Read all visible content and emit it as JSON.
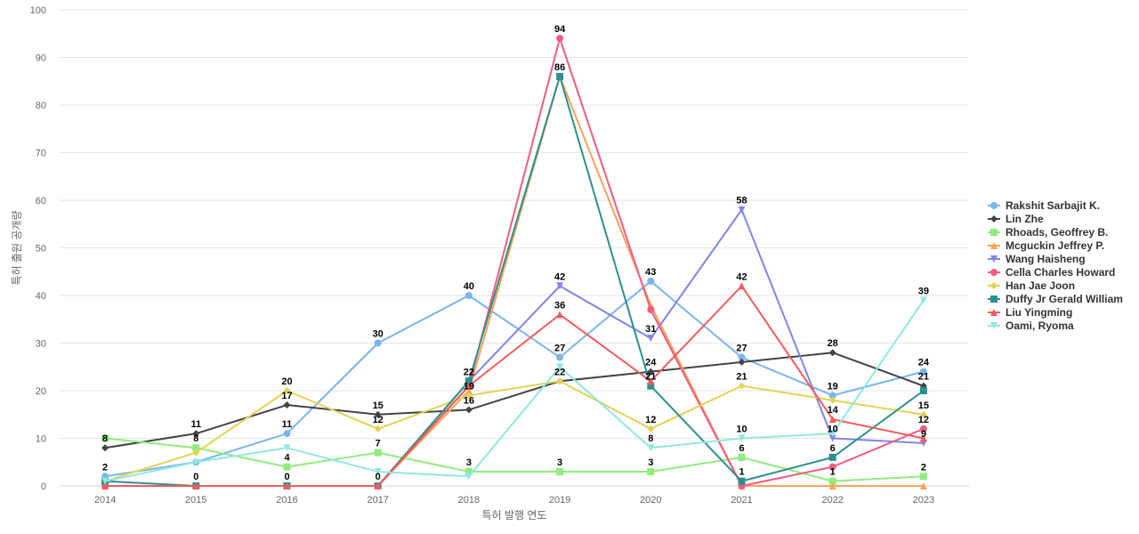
{
  "chart_data": {
    "type": "line",
    "x": [
      "2014",
      "2015",
      "2016",
      "2017",
      "2018",
      "2019",
      "2020",
      "2021",
      "2022",
      "2023"
    ],
    "xlabel": "특허 발행 연도",
    "ylabel": "특허 출원 공개량",
    "ylim": [
      0,
      100
    ],
    "yticks": [
      0,
      10,
      20,
      30,
      40,
      50,
      60,
      70,
      80,
      90,
      100
    ],
    "grid": true,
    "legend_position": "right",
    "series": [
      {
        "name": "Rakshit Sarbajit K.",
        "color": "#7cb5ec",
        "marker": "circle",
        "values": [
          2,
          5,
          11,
          30,
          40,
          27,
          43,
          27,
          19,
          24
        ],
        "labels": [
          true,
          false,
          true,
          true,
          true,
          true,
          true,
          true,
          true,
          true
        ]
      },
      {
        "name": "Lin Zhe",
        "color": "#434348",
        "marker": "diamond",
        "values": [
          8,
          11,
          17,
          15,
          16,
          22,
          24,
          26,
          28,
          21
        ],
        "labels": [
          true,
          true,
          true,
          true,
          true,
          false,
          true,
          false,
          true,
          true
        ]
      },
      {
        "name": "Rhoads, Geoffrey B.",
        "color": "#90ed7d",
        "marker": "square",
        "values": [
          10,
          8,
          4,
          7,
          3,
          3,
          3,
          6,
          1,
          2
        ],
        "labels": [
          false,
          true,
          true,
          true,
          true,
          true,
          true,
          true,
          true,
          true
        ]
      },
      {
        "name": "Mcguckin Jeffrey P.",
        "color": "#f7a35c",
        "marker": "triangle",
        "values": [
          0,
          0,
          0,
          0,
          20,
          86,
          38,
          0,
          0,
          0
        ],
        "labels": [
          false,
          false,
          false,
          false,
          false,
          false,
          false,
          false,
          false,
          false
        ]
      },
      {
        "name": "Wang Haisheng",
        "color": "#8085e9",
        "marker": "triangle-down",
        "values": [
          0,
          0,
          0,
          0,
          22,
          42,
          31,
          58,
          10,
          9
        ],
        "labels": [
          false,
          false,
          false,
          false,
          false,
          true,
          true,
          true,
          true,
          true
        ]
      },
      {
        "name": "Cella Charles Howard",
        "color": "#f15c80",
        "marker": "circle",
        "values": [
          0,
          0,
          0,
          0,
          21,
          94,
          37,
          0,
          4,
          12
        ],
        "labels": [
          false,
          false,
          false,
          false,
          false,
          true,
          false,
          false,
          false,
          true
        ]
      },
      {
        "name": "Han Jae Joon",
        "color": "#e4d354",
        "marker": "diamond",
        "values": [
          1,
          7,
          20,
          12,
          19,
          22,
          12,
          21,
          18,
          15
        ],
        "labels": [
          false,
          false,
          true,
          true,
          true,
          true,
          true,
          true,
          false,
          true
        ]
      },
      {
        "name": "Duffy Jr Gerald William",
        "color": "#2b908f",
        "marker": "square",
        "values": [
          1,
          0,
          0,
          0,
          22,
          86,
          21,
          1,
          6,
          20
        ],
        "labels": [
          false,
          true,
          true,
          true,
          true,
          true,
          true,
          true,
          true,
          false
        ]
      },
      {
        "name": "Liu Yingming",
        "color": "#f45b5b",
        "marker": "triangle",
        "values": [
          0,
          0,
          0,
          0,
          21,
          36,
          22,
          42,
          14,
          10
        ],
        "labels": [
          false,
          false,
          false,
          false,
          false,
          true,
          false,
          true,
          true,
          false
        ]
      },
      {
        "name": "Oami, Ryoma",
        "color": "#91e8e1",
        "marker": "triangle-down",
        "values": [
          1,
          5,
          8,
          3,
          2,
          25,
          8,
          10,
          11,
          39
        ],
        "labels": [
          false,
          false,
          false,
          false,
          false,
          false,
          true,
          true,
          false,
          true
        ]
      }
    ]
  }
}
